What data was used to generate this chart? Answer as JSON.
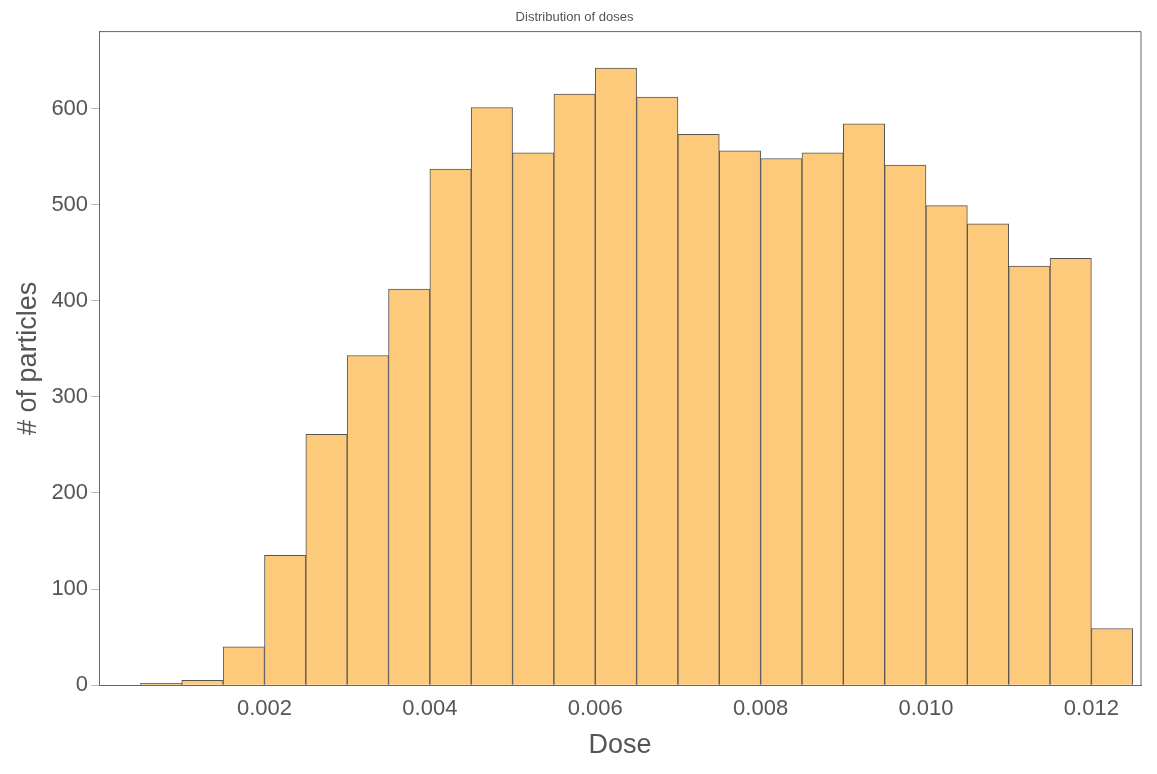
{
  "chart_data": {
    "type": "histogram",
    "title": "Distribution of doses",
    "xlabel": "Dose",
    "ylabel": "# of particles",
    "bins": [
      0.0005,
      0.001,
      0.0015,
      0.002,
      0.0025,
      0.003,
      0.0035,
      0.004,
      0.0045,
      0.005,
      0.0055,
      0.006,
      0.0065,
      0.007,
      0.0075,
      0.008,
      0.0085,
      0.009,
      0.0095,
      0.01,
      0.0105,
      0.011,
      0.0115,
      0.012,
      0.0125
    ],
    "values": [
      2,
      5,
      40,
      135,
      261,
      343,
      412,
      537,
      601,
      554,
      615,
      642,
      612,
      573,
      556,
      548,
      554,
      584,
      541,
      499,
      480,
      436,
      444,
      59
    ],
    "color": "#fdca7c",
    "xlim": [
      0,
      0.0126
    ],
    "ylim": [
      0,
      680
    ],
    "xticks": [
      {
        "value": 0.002,
        "label": "0.002"
      },
      {
        "value": 0.004,
        "label": "0.004"
      },
      {
        "value": 0.006,
        "label": "0.006"
      },
      {
        "value": 0.008,
        "label": "0.008"
      },
      {
        "value": 0.01,
        "label": "0.010"
      },
      {
        "value": 0.012,
        "label": "0.012"
      }
    ],
    "yticks": [
      0,
      100,
      200,
      300,
      400,
      500,
      600
    ],
    "grid": false,
    "legend": false
  }
}
